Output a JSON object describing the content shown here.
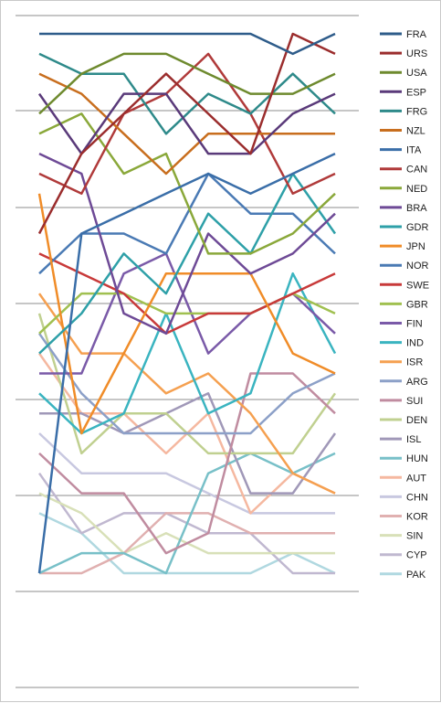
{
  "chart_data": {
    "type": "line",
    "title": "",
    "xlabel": "",
    "ylabel": "",
    "x": [
      1,
      2,
      3,
      4,
      5,
      6,
      7,
      8
    ],
    "ylim": [
      28,
      1
    ],
    "y_reversed": true,
    "grid": "horizontal",
    "legend": "right",
    "series": [
      {
        "name": "FRA",
        "color": "#2e5c8a",
        "values": [
          1,
          1,
          1,
          1,
          1,
          1,
          2,
          1
        ]
      },
      {
        "name": "URS",
        "color": "#9b2d2d",
        "values": [
          11,
          7,
          5,
          3,
          5,
          7,
          1,
          2
        ]
      },
      {
        "name": "USA",
        "color": "#6e8a2e",
        "values": [
          5,
          3,
          2,
          2,
          3,
          4,
          4,
          3
        ]
      },
      {
        "name": "ESP",
        "color": "#5a3a7a",
        "values": [
          4,
          7,
          4,
          4,
          7,
          7,
          5,
          4
        ]
      },
      {
        "name": "FRG",
        "color": "#2e8a8a",
        "values": [
          2,
          3,
          3,
          6,
          4,
          5,
          3,
          5
        ]
      },
      {
        "name": "NZL",
        "color": "#c86e1e",
        "values": [
          3,
          4,
          6,
          8,
          6,
          6,
          6,
          6
        ]
      },
      {
        "name": "ITA",
        "color": "#3a6ea8",
        "values": [
          28,
          11,
          10,
          9,
          8,
          9,
          8,
          7
        ]
      },
      {
        "name": "CAN",
        "color": "#b03a3a",
        "values": [
          8,
          9,
          5,
          4,
          2,
          5,
          9,
          8
        ]
      },
      {
        "name": "NED",
        "color": "#8aa83a",
        "values": [
          6,
          5,
          8,
          7,
          12,
          12,
          11,
          9
        ]
      },
      {
        "name": "BRA",
        "color": "#6e4a96",
        "values": [
          7,
          8,
          15,
          16,
          11,
          13,
          12,
          10
        ]
      },
      {
        "name": "GDR",
        "color": "#2ea0a8",
        "values": [
          17,
          15,
          12,
          14,
          10,
          12,
          8,
          11
        ]
      },
      {
        "name": "JPN",
        "color": "#f08c28",
        "values": [
          9,
          21,
          17,
          13,
          13,
          13,
          17,
          18
        ]
      },
      {
        "name": "NOR",
        "color": "#4a7ab4",
        "values": [
          13,
          11,
          11,
          12,
          8,
          10,
          10,
          12
        ]
      },
      {
        "name": "SWE",
        "color": "#c83a3a",
        "values": [
          12,
          13,
          14,
          16,
          15,
          15,
          14,
          13
        ]
      },
      {
        "name": "GBR",
        "color": "#a0c050",
        "values": [
          16,
          14,
          14,
          15,
          15,
          15,
          14,
          15
        ]
      },
      {
        "name": "FIN",
        "color": "#7a5aa8",
        "values": [
          18,
          18,
          13,
          12,
          17,
          15,
          14,
          16
        ]
      },
      {
        "name": "IND",
        "color": "#3ab4c0",
        "values": [
          19,
          21,
          20,
          15,
          20,
          19,
          13,
          17
        ]
      },
      {
        "name": "ISR",
        "color": "#f5a050",
        "values": [
          14,
          17,
          17,
          19,
          18,
          20,
          23,
          24
        ]
      },
      {
        "name": "ARG",
        "color": "#8ca0c8",
        "values": [
          16,
          19,
          21,
          21,
          21,
          21,
          19,
          18
        ]
      },
      {
        "name": "SUI",
        "color": "#c08ca0",
        "values": [
          22,
          24,
          24,
          27,
          26,
          18,
          18,
          20
        ]
      },
      {
        "name": "DEN",
        "color": "#c0d090",
        "values": [
          15,
          22,
          20,
          20,
          22,
          22,
          22,
          19
        ]
      },
      {
        "name": "ISL",
        "color": "#a098b8",
        "values": [
          20,
          20,
          21,
          20,
          19,
          24,
          24,
          21
        ]
      },
      {
        "name": "HUN",
        "color": "#78c0c8",
        "values": [
          28,
          27,
          27,
          28,
          23,
          22,
          23,
          22
        ]
      },
      {
        "name": "AUT",
        "color": "#f5b8a0",
        "values": [
          17,
          20,
          20,
          22,
          20,
          25,
          23,
          24
        ]
      },
      {
        "name": "CHN",
        "color": "#c8c8e0",
        "values": [
          21,
          23,
          23,
          23,
          24,
          25,
          25,
          25
        ]
      },
      {
        "name": "KOR",
        "color": "#e0b0b0",
        "values": [
          28,
          28,
          27,
          25,
          25,
          26,
          26,
          26
        ]
      },
      {
        "name": "SIN",
        "color": "#d8e0b8",
        "values": [
          24,
          25,
          27,
          26,
          27,
          27,
          27,
          27
        ]
      },
      {
        "name": "CYP",
        "color": "#c0b8d0",
        "values": [
          23,
          26,
          25,
          25,
          26,
          26,
          28,
          28
        ]
      },
      {
        "name": "PAK",
        "color": "#b0d8e0",
        "values": [
          25,
          26,
          28,
          28,
          28,
          28,
          27,
          28
        ]
      }
    ]
  }
}
